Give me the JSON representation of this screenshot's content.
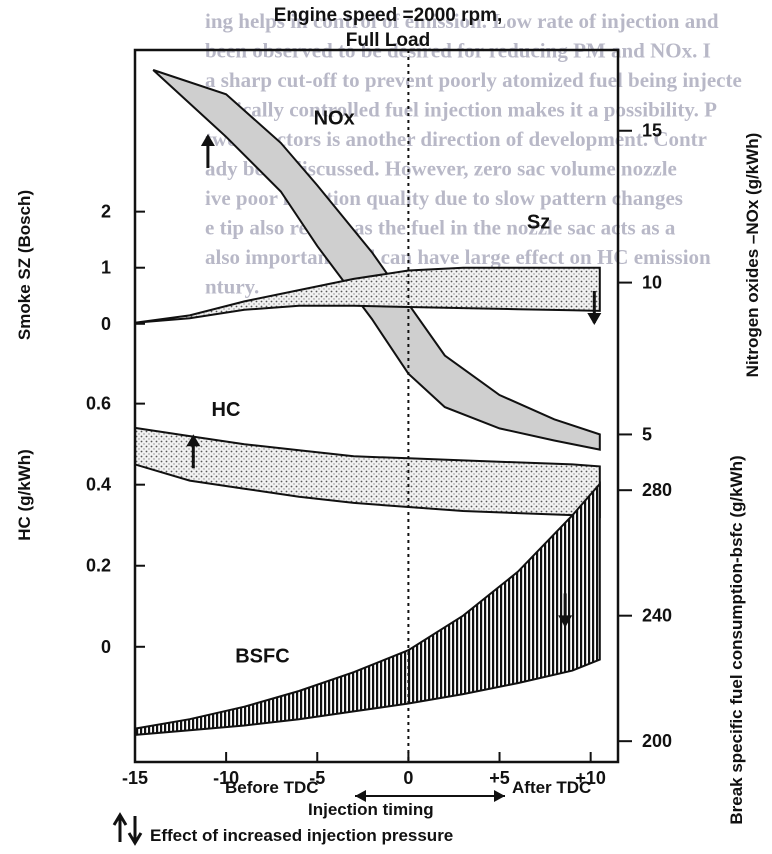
{
  "chart_data": {
    "type": "area",
    "title": "Engine speed =2000 rpm,",
    "subtitle": "Full Load",
    "x": {
      "ticks": [
        -15,
        -10,
        -5,
        0,
        5,
        10
      ],
      "tick_labels": [
        "-15",
        "-10",
        "-5",
        "0",
        "+5",
        "+10"
      ],
      "range": [
        -15,
        11.5
      ],
      "label_left": "Before TDC",
      "label_right": "After TDC",
      "label_center": "Injection timing",
      "reference_line_x": 0
    },
    "legend_note": "Effect of increased injection pressure",
    "left_axes": [
      {
        "name": "smoke",
        "label": "Smoke SZ (Bosch)",
        "ticks": [
          0,
          1,
          2
        ],
        "tick_labels": [
          "0",
          "1",
          "2"
        ],
        "range": [
          -0.2,
          2.6
        ]
      },
      {
        "name": "hc",
        "label": "HC (g/kWh)",
        "ticks": [
          0,
          0.2,
          0.4,
          0.6
        ],
        "tick_labels": [
          "0",
          "0.2",
          "0.4",
          "0.6"
        ],
        "range": [
          -0.23,
          0.72
        ]
      }
    ],
    "right_axes": [
      {
        "name": "nox",
        "label": "Nitrogen oxides –NOx (g/kWh)",
        "ticks": [
          5,
          10,
          15
        ],
        "tick_labels": [
          "5",
          "10",
          "15"
        ],
        "range": [
          3.5,
          17
        ]
      },
      {
        "name": "bsfc",
        "label": "Break specific fuel consumption-bsfc (g/kWh)",
        "ticks": [
          200,
          240,
          280
        ],
        "tick_labels": [
          "200",
          "240",
          "280"
        ],
        "range": [
          194,
          296
        ]
      }
    ],
    "series": [
      {
        "name": "NOx",
        "axis": "nox",
        "pressure_effect": "up",
        "x": [
          -14,
          -10,
          -7,
          -5,
          -2,
          0,
          2,
          5,
          8,
          10.5
        ],
        "upper": [
          17,
          16.2,
          14.6,
          13.2,
          11.0,
          9.3,
          7.6,
          6.3,
          5.5,
          5.0
        ],
        "lower": [
          17,
          14.8,
          13.0,
          11.2,
          8.8,
          7.0,
          5.9,
          5.2,
          4.8,
          4.5
        ]
      },
      {
        "name": "Sz",
        "axis": "smoke",
        "pressure_effect": "down",
        "x": [
          -15,
          -12,
          -9,
          -6,
          -3,
          0,
          3,
          6,
          9,
          10.5
        ],
        "upper": [
          0.02,
          0.15,
          0.4,
          0.6,
          0.8,
          0.95,
          1.0,
          1.0,
          1.0,
          1.0
        ],
        "lower": [
          0.02,
          0.1,
          0.25,
          0.32,
          0.32,
          0.3,
          0.28,
          0.26,
          0.24,
          0.23
        ]
      },
      {
        "name": "HC",
        "axis": "hc",
        "pressure_effect": "up",
        "x": [
          -15,
          -12,
          -9,
          -6,
          -3,
          0,
          3,
          6,
          9,
          10.5
        ],
        "upper": [
          0.54,
          0.52,
          0.5,
          0.485,
          0.47,
          0.465,
          0.46,
          0.455,
          0.45,
          0.445
        ],
        "lower": [
          0.45,
          0.41,
          0.39,
          0.37,
          0.355,
          0.345,
          0.335,
          0.33,
          0.325,
          0.32
        ]
      },
      {
        "name": "BSFC",
        "axis": "bsfc",
        "pressure_effect": "down",
        "x": [
          -15,
          -12,
          -9,
          -6,
          -3,
          0,
          3,
          6,
          9,
          10.5
        ],
        "upper": [
          204,
          207,
          211,
          216,
          222,
          229,
          240,
          254,
          272,
          282
        ],
        "lower": [
          202,
          203.5,
          205,
          207,
          209.5,
          212,
          215,
          218.5,
          222.5,
          226
        ]
      }
    ]
  },
  "background_text": [
    "ing helps in control of emission. Low rate of injection and",
    "been observed to be desired for reducing PM and NOx. I",
    "a sharp cut-off to prevent poorly atomized fuel being injecte",
    "ronically controlled fuel injection makes it a possibility. P",
    "two injectors is another direction of development. Contr",
    "ady been discussed. However, zero sac volume nozzle",
    "ive poor injection quality due to slow pattern changes",
    "e tip also results as the fuel in the nozzle sac acts as a",
    "also important and can have large effect on HC emission",
    "ntury."
  ]
}
